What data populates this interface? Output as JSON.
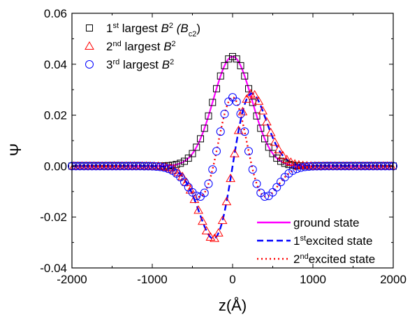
{
  "chart_data": {
    "type": "scatter",
    "title": "",
    "xlabel": "z(Å)",
    "ylabel": "Ψ",
    "xlim": [
      -2000,
      2000
    ],
    "ylim": [
      -0.04,
      0.06
    ],
    "xticks": [
      "-2000",
      "-1000",
      "0",
      "1000",
      "2000"
    ],
    "yticks": [
      "-0.04",
      "-0.02",
      "0.00",
      "0.02",
      "0.04",
      "0.06"
    ],
    "grid": false,
    "legend_top": [
      {
        "marker": "square",
        "color": "#000000",
        "prefix": "1",
        "sup": "st",
        "text": " largest ",
        "var": "B",
        "var_sup": "2",
        "extra": " (B",
        "extra_sub": "c2",
        "extra_end": ")"
      },
      {
        "marker": "triangle",
        "color": "#ff0000",
        "prefix": "2",
        "sup": "nd",
        "text": " largest ",
        "var": "B",
        "var_sup": "2"
      },
      {
        "marker": "circle",
        "color": "#0000ff",
        "prefix": "3",
        "sup": "rd",
        "text": " largest ",
        "var": "B",
        "var_sup": "2"
      }
    ],
    "legend_bottom": [
      {
        "style": "solid",
        "color": "#ff00ff",
        "label": "ground state"
      },
      {
        "style": "dashed",
        "color": "#0000ff",
        "prefix": "1",
        "sup": "st",
        "label": "excited state"
      },
      {
        "style": "dotted",
        "color": "#ff0000",
        "prefix": "2",
        "sup": "nd",
        "label": "excited state"
      }
    ],
    "series": [
      {
        "name": "1st largest B2 (Bc2)",
        "marker": "square",
        "color": "#000000",
        "model": "gaussian",
        "amplitude": 0.043,
        "width": 240,
        "x_range": [
          -2000,
          2000
        ],
        "step": 50,
        "x_offset": 0
      },
      {
        "name": "2nd largest B2",
        "marker": "triangle",
        "color": "#ff0000",
        "model": "first-excited",
        "amplitude": 0.0285,
        "width": 240,
        "x_range": [
          -2000,
          2000
        ],
        "step": 50,
        "x_offset": 25
      },
      {
        "name": "3rd largest B2",
        "marker": "circle",
        "color": "#0000ff",
        "model": "second-excited",
        "amplitude": 0.032,
        "width": 240,
        "x_range": [
          -2000,
          2000
        ],
        "step": 50,
        "x_offset": 0
      },
      {
        "name": "ground state",
        "line": "solid",
        "color": "#ff00ff",
        "model": "gaussian",
        "amplitude": 0.043,
        "width": 240
      },
      {
        "name": "1st excited state",
        "line": "dashed",
        "color": "#0000ff",
        "model": "first-excited",
        "amplitude": 0.0285,
        "width": 240
      },
      {
        "name": "2nd excited state",
        "line": "dotted",
        "color": "#ff0000",
        "model": "second-excited",
        "amplitude": 0.032,
        "width": 240
      }
    ]
  }
}
